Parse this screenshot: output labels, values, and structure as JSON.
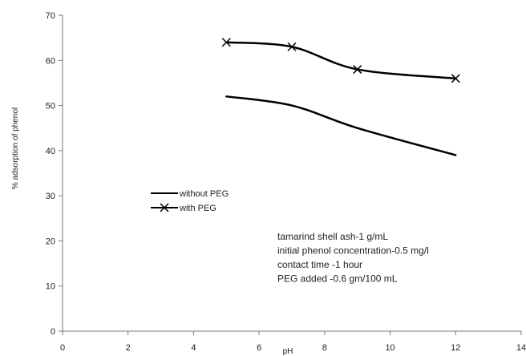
{
  "chart_data": {
    "type": "line",
    "xlabel": "pH",
    "ylabel": "% adsorption of phenol",
    "xlim": [
      0,
      14
    ],
    "ylim": [
      0,
      70
    ],
    "xticks": [
      0,
      2,
      4,
      6,
      8,
      10,
      12,
      14
    ],
    "yticks": [
      0,
      10,
      20,
      30,
      40,
      50,
      60,
      70
    ],
    "grid": false,
    "legend_position": "left-middle",
    "series": [
      {
        "name": "without PEG",
        "color": "#000000",
        "marker": "none",
        "x": [
          5,
          7,
          9,
          12
        ],
        "y": [
          52,
          50,
          45,
          39
        ]
      },
      {
        "name": "with PEG",
        "color": "#000000",
        "marker": "x",
        "x": [
          5,
          7,
          9,
          12
        ],
        "y": [
          64,
          63,
          58,
          56
        ]
      }
    ],
    "annotations": [
      "tamarind shell ash-1 g/mL",
      "initial phenol concentration-0.5 mg/l",
      "contact time -1 hour",
      "PEG added -0.6 gm/100 mL"
    ]
  }
}
